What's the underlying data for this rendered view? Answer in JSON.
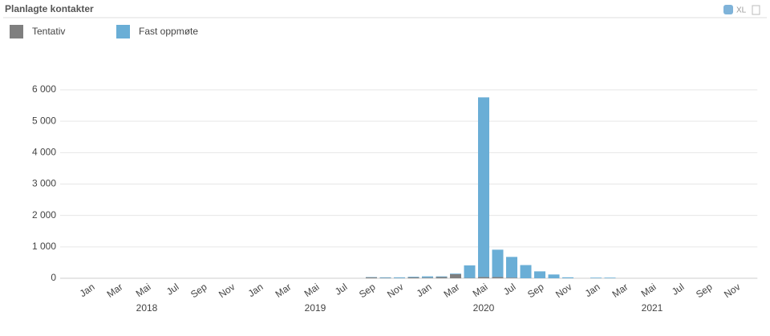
{
  "toolbar": {
    "export": "XL"
  },
  "chart_data": {
    "type": "bar",
    "stacked": true,
    "title": "Planlagte kontakter",
    "categories": [
      "Jan",
      null,
      "Mar",
      null,
      "Mai",
      null,
      "Jul",
      null,
      "Sep",
      null,
      "Nov",
      null,
      "Jan",
      null,
      "Mar",
      null,
      "Mai",
      null,
      "Jul",
      null,
      "Sep",
      null,
      "Nov",
      null,
      "Jan",
      null,
      "Mar",
      null,
      "Mai",
      null,
      "Jul",
      null,
      "Sep",
      null,
      "Nov",
      null,
      "Jan",
      null,
      "Mar",
      null,
      "Mai",
      null,
      "Jul",
      null,
      "Sep",
      null,
      "Nov",
      null
    ],
    "years": [
      "2018",
      "2019",
      "2020",
      "2021"
    ],
    "series": [
      {
        "name": "Tentativ",
        "color": "#7f7f7f",
        "values": [
          0,
          0,
          0,
          0,
          0,
          0,
          0,
          0,
          0,
          0,
          0,
          0,
          0,
          0,
          0,
          0,
          0,
          0,
          0,
          0,
          30,
          10,
          5,
          30,
          20,
          40,
          130,
          10,
          40,
          40,
          20,
          0,
          0,
          0,
          0,
          0,
          0,
          0,
          0,
          0,
          0,
          0,
          0,
          0,
          0,
          0,
          0,
          0
        ]
      },
      {
        "name": "Fast oppmøte",
        "color": "#6aaed6",
        "values": [
          0,
          0,
          0,
          0,
          0,
          0,
          0,
          0,
          0,
          0,
          0,
          0,
          0,
          0,
          0,
          0,
          0,
          0,
          0,
          0,
          10,
          20,
          25,
          20,
          40,
          20,
          20,
          400,
          5720,
          870,
          660,
          420,
          220,
          120,
          30,
          0,
          20,
          20,
          0,
          0,
          0,
          0,
          0,
          0,
          0,
          0,
          0,
          0
        ]
      }
    ],
    "ylim": [
      0,
      6000
    ],
    "yticks": [
      0,
      {
        "value": 1000,
        "label": "1 000"
      },
      {
        "value": 2000,
        "label": "2 000"
      },
      {
        "value": 3000,
        "label": "3 000"
      },
      {
        "value": 4000,
        "label": "4 000"
      },
      {
        "value": 5000,
        "label": "5 000"
      },
      {
        "value": 6000,
        "label": "6 000"
      }
    ],
    "grid": true
  }
}
